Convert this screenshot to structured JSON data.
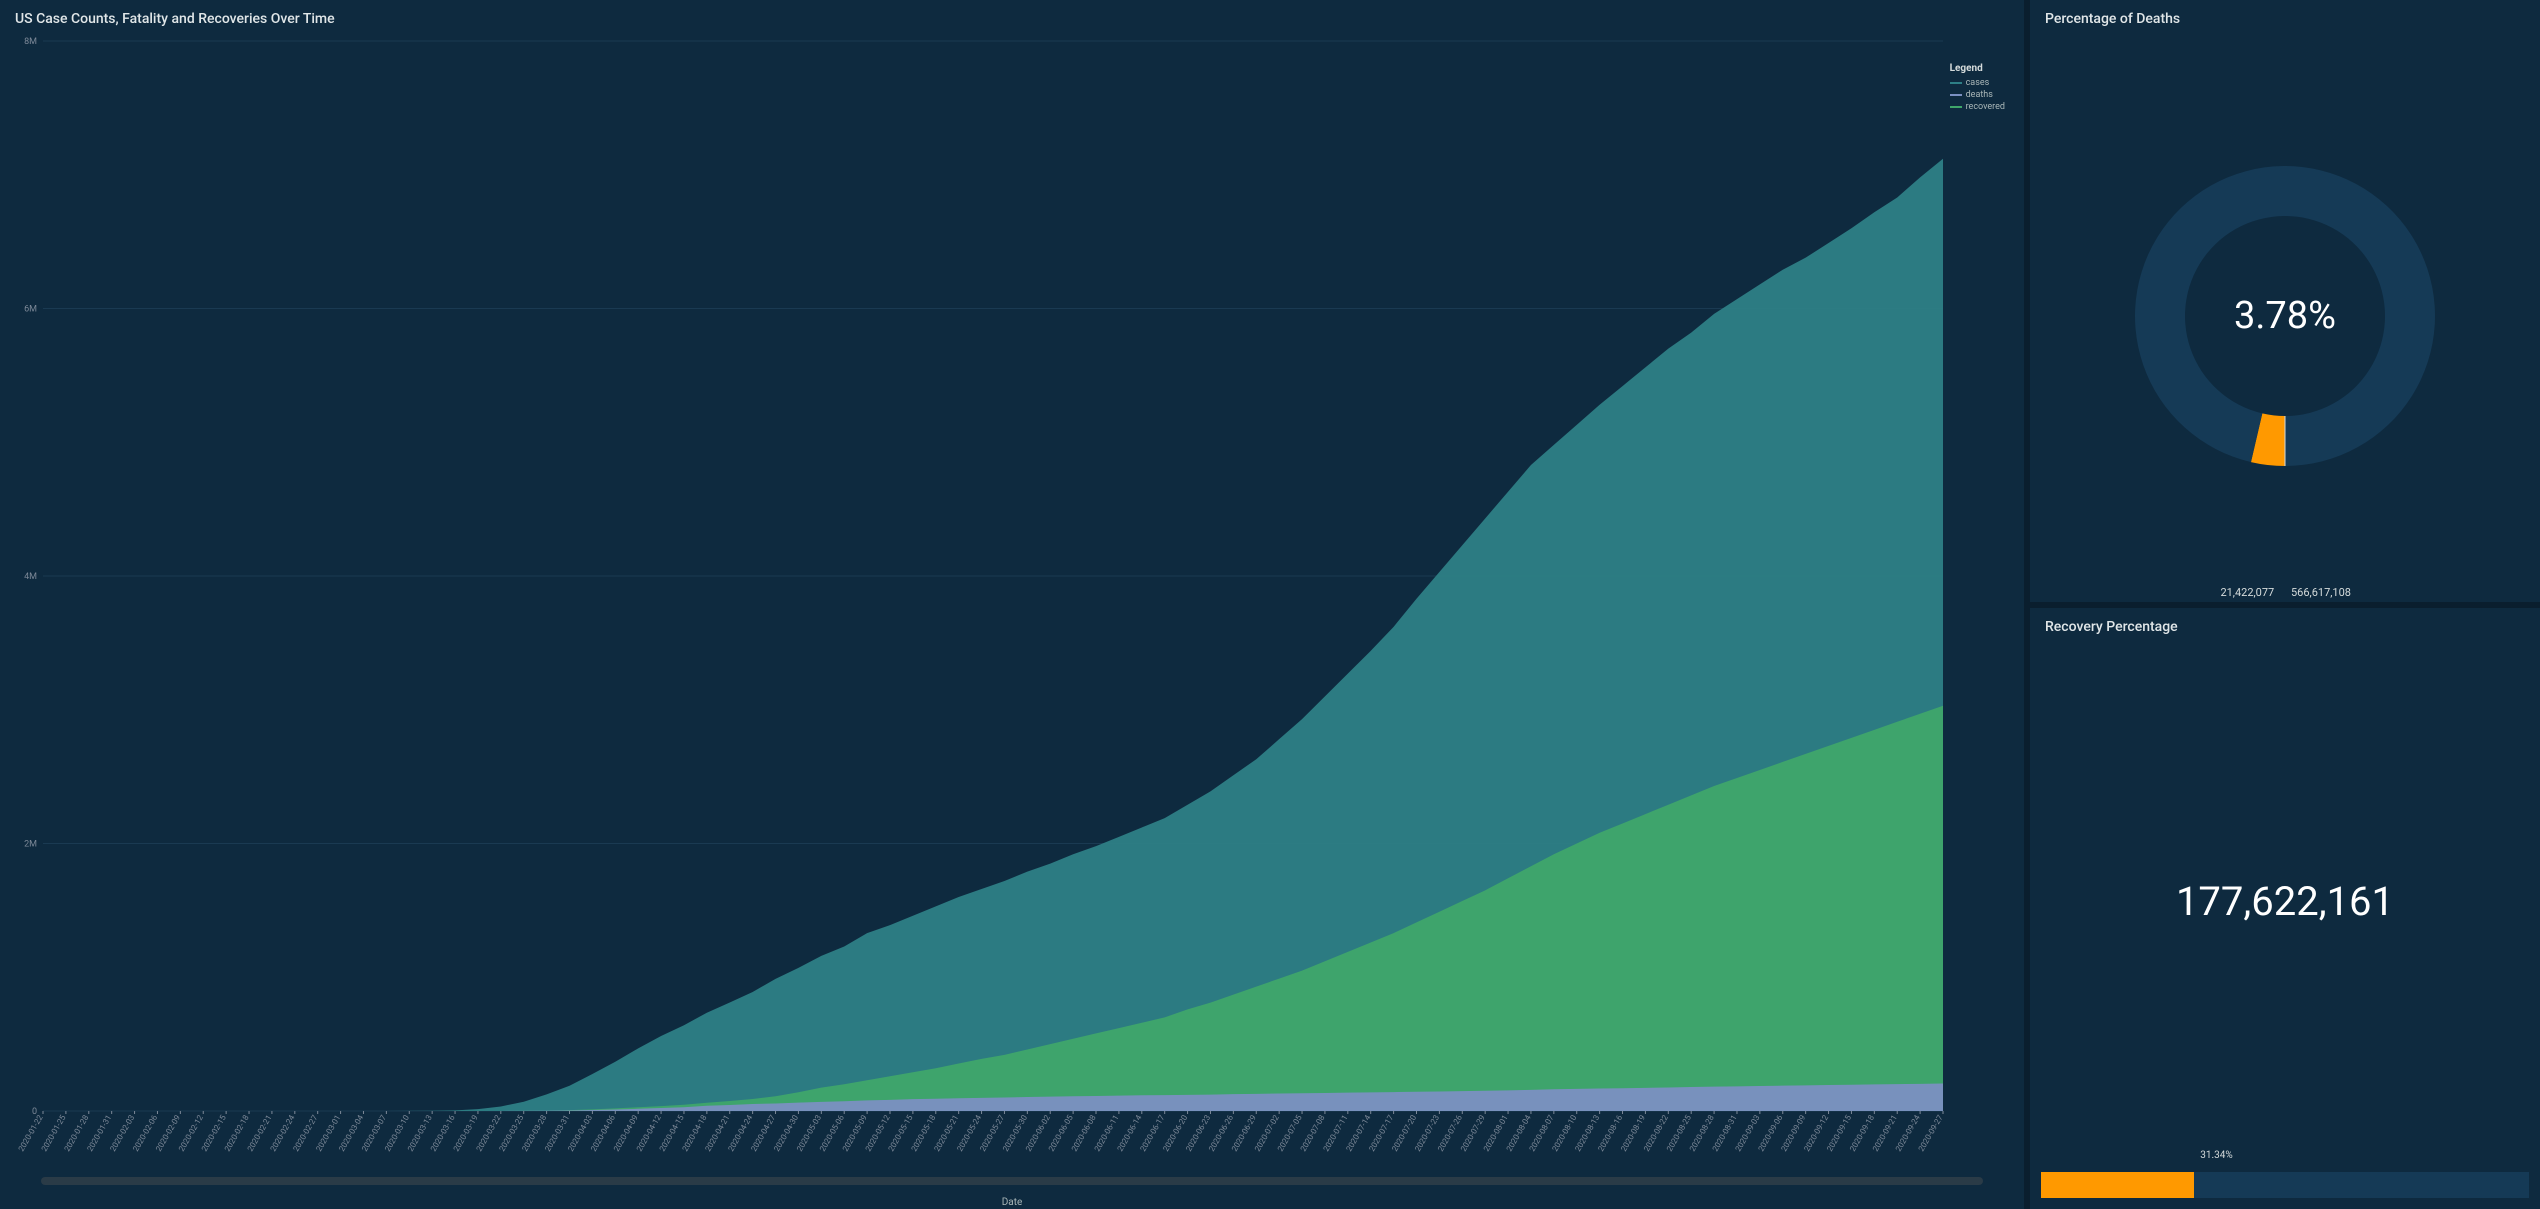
{
  "background_color": "#0a1e2e",
  "panel_color": "#0e2a3f",
  "text_color": "#d5dbdb",
  "area_chart": {
    "title": "US Case Counts, Fatality and Recoveries Over Time",
    "type": "area",
    "x_axis_label": "Date",
    "legend_title": "Legend",
    "legend": [
      {
        "label": "cases",
        "color": "#2e7f86"
      },
      {
        "label": "deaths",
        "color": "#7b90c2"
      },
      {
        "label": "recovered",
        "color": "#3fa66a"
      }
    ],
    "grid_color": "#1a3a52",
    "y_ticks": [
      0,
      2000000,
      4000000,
      6000000,
      8000000
    ],
    "y_tick_labels": [
      "0",
      "2M",
      "4M",
      "6M",
      "8M"
    ],
    "ylim": [
      0,
      8000000
    ],
    "x_labels": [
      "2020-01-22",
      "2020-01-25",
      "2020-01-28",
      "2020-01-31",
      "2020-02-03",
      "2020-02-06",
      "2020-02-09",
      "2020-02-12",
      "2020-02-15",
      "2020-02-18",
      "2020-02-21",
      "2020-02-24",
      "2020-02-27",
      "2020-03-01",
      "2020-03-04",
      "2020-03-07",
      "2020-03-10",
      "2020-03-13",
      "2020-03-16",
      "2020-03-19",
      "2020-03-22",
      "2020-03-25",
      "2020-03-28",
      "2020-03-31",
      "2020-04-03",
      "2020-04-06",
      "2020-04-09",
      "2020-04-12",
      "2020-04-15",
      "2020-04-18",
      "2020-04-21",
      "2020-04-24",
      "2020-04-27",
      "2020-04-30",
      "2020-05-03",
      "2020-05-06",
      "2020-05-09",
      "2020-05-12",
      "2020-05-15",
      "2020-05-18",
      "2020-05-21",
      "2020-05-24",
      "2020-05-27",
      "2020-05-30",
      "2020-06-02",
      "2020-06-05",
      "2020-06-08",
      "2020-06-11",
      "2020-06-14",
      "2020-06-17",
      "2020-06-20",
      "2020-06-23",
      "2020-06-26",
      "2020-06-29",
      "2020-07-02",
      "2020-07-05",
      "2020-07-08",
      "2020-07-11",
      "2020-07-14",
      "2020-07-17",
      "2020-07-20",
      "2020-07-23",
      "2020-07-26",
      "2020-07-29",
      "2020-08-01",
      "2020-08-04",
      "2020-08-07",
      "2020-08-10",
      "2020-08-13",
      "2020-08-16",
      "2020-08-19",
      "2020-08-22",
      "2020-08-25",
      "2020-08-28",
      "2020-08-31",
      "2020-09-03",
      "2020-09-06",
      "2020-09-09",
      "2020-09-12",
      "2020-09-15",
      "2020-09-18",
      "2020-09-21",
      "2020-09-24",
      "2020-09-27"
    ],
    "series": {
      "cases": [
        1,
        2,
        5,
        8,
        11,
        12,
        12,
        13,
        13,
        13,
        15,
        35,
        60,
        76,
        158,
        425,
        994,
        2200,
        4640,
        13900,
        33600,
        69200,
        124000,
        189000,
        277000,
        368000,
        468000,
        561000,
        641000,
        735000,
        811000,
        890000,
        988000,
        1070000,
        1160000,
        1230000,
        1330000,
        1390000,
        1460000,
        1530000,
        1600000,
        1660000,
        1720000,
        1790000,
        1850000,
        1920000,
        1980000,
        2050000,
        2120000,
        2190000,
        2290000,
        2390000,
        2510000,
        2630000,
        2780000,
        2930000,
        3100000,
        3270000,
        3440000,
        3620000,
        3830000,
        4030000,
        4230000,
        4430000,
        4630000,
        4830000,
        4980000,
        5130000,
        5280000,
        5420000,
        5560000,
        5700000,
        5820000,
        5960000,
        6070000,
        6180000,
        6290000,
        6380000,
        6490000,
        6600000,
        6720000,
        6830000,
        6980000,
        7120000
      ],
      "recovered": [
        0,
        0,
        0,
        0,
        0,
        0,
        0,
        0,
        0,
        0,
        0,
        0,
        0,
        0,
        7,
        12,
        15,
        31,
        74,
        121,
        178,
        620,
        870,
        7000,
        12000,
        20000,
        28000,
        36000,
        47000,
        62000,
        75000,
        90000,
        110000,
        140000,
        175000,
        200000,
        230000,
        260000,
        290000,
        320000,
        355000,
        390000,
        420000,
        460000,
        500000,
        540000,
        580000,
        620000,
        660000,
        700000,
        760000,
        810000,
        870000,
        930000,
        990000,
        1050000,
        1120000,
        1190000,
        1260000,
        1330000,
        1410000,
        1490000,
        1570000,
        1650000,
        1740000,
        1830000,
        1920000,
        2000000,
        2080000,
        2150000,
        2220000,
        2290000,
        2360000,
        2430000,
        2490000,
        2550000,
        2610000,
        2670000,
        2730000,
        2790000,
        2850000,
        2910000,
        2970000,
        3030000
      ],
      "deaths": [
        0,
        0,
        0,
        0,
        0,
        0,
        0,
        0,
        0,
        0,
        0,
        0,
        0,
        1,
        11,
        17,
        28,
        47,
        87,
        207,
        427,
        1000,
        2200,
        4000,
        7100,
        10900,
        16500,
        22100,
        28300,
        39000,
        45000,
        52000,
        56500,
        63000,
        68000,
        72500,
        79500,
        83500,
        88500,
        91500,
        95500,
        98500,
        101000,
        104500,
        107500,
        110500,
        112500,
        115000,
        117500,
        119000,
        120500,
        122000,
        126000,
        128000,
        130500,
        132500,
        135000,
        137500,
        139500,
        141500,
        143500,
        146000,
        148500,
        151000,
        154500,
        158000,
        162500,
        165000,
        168000,
        170500,
        173000,
        176000,
        179000,
        182000,
        184000,
        187000,
        189500,
        192000,
        194000,
        196000,
        199000,
        201000,
        203000,
        206000
      ]
    },
    "colors": {
      "cases": "#2e7f86",
      "recovered": "#3fa66a",
      "deaths": "#7b90c2"
    },
    "fill_opacity": 0.95,
    "label_fontsize": 8
  },
  "donut": {
    "title": "Percentage of Deaths",
    "type": "donut",
    "center_label": "3.78%",
    "slices": [
      {
        "label": "21,422,077",
        "value": 21422077,
        "color": "#ff9900"
      },
      {
        "label": "566,617,108",
        "value": 566617108,
        "color": "#153a56"
      }
    ],
    "ring_outer_radius": 150,
    "ring_inner_radius": 100,
    "background_color": "#0e2a3f",
    "center_fontsize": 38
  },
  "recovery": {
    "title": "Recovery Percentage",
    "type": "kpi-progress",
    "kpi_value": "177,622,161",
    "kpi_fontsize": 40,
    "progress_pct": 31.34,
    "progress_label": "31.34%",
    "bar_fill_color": "#ff9900",
    "bar_bg_color": "#153a56"
  }
}
